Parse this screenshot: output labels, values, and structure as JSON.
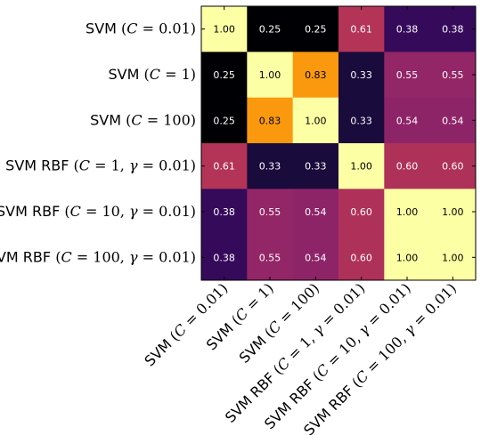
{
  "chart_data": {
    "type": "heatmap",
    "title": "",
    "xlabel": "",
    "ylabel": "",
    "colormap": "inferno",
    "value_range": [
      0.25,
      1.0
    ],
    "colorbar": false,
    "grid": false,
    "labels": [
      [
        {
          "t": "SVM ",
          "s": "n"
        },
        {
          "t": "(",
          "s": "u"
        },
        {
          "t": "C",
          "s": "i"
        },
        {
          "t": " = 0.01)",
          "s": "u"
        }
      ],
      [
        {
          "t": "SVM ",
          "s": "n"
        },
        {
          "t": "(",
          "s": "u"
        },
        {
          "t": "C",
          "s": "i"
        },
        {
          "t": " = 1)",
          "s": "u"
        }
      ],
      [
        {
          "t": "SVM ",
          "s": "n"
        },
        {
          "t": "(",
          "s": "u"
        },
        {
          "t": "C",
          "s": "i"
        },
        {
          "t": " = 100)",
          "s": "u"
        }
      ],
      [
        {
          "t": "SVM RBF ",
          "s": "n"
        },
        {
          "t": "(",
          "s": "u"
        },
        {
          "t": "C",
          "s": "i"
        },
        {
          "t": " = 1, ",
          "s": "u"
        },
        {
          "t": "γ",
          "s": "i"
        },
        {
          "t": " = 0.01)",
          "s": "u"
        }
      ],
      [
        {
          "t": "SVM RBF ",
          "s": "n"
        },
        {
          "t": "(",
          "s": "u"
        },
        {
          "t": "C",
          "s": "i"
        },
        {
          "t": " = 10, ",
          "s": "u"
        },
        {
          "t": "γ",
          "s": "i"
        },
        {
          "t": " = 0.01)",
          "s": "u"
        }
      ],
      [
        {
          "t": "SVM RBF ",
          "s": "n"
        },
        {
          "t": "(",
          "s": "u"
        },
        {
          "t": "C",
          "s": "i"
        },
        {
          "t": " = 100, ",
          "s": "u"
        },
        {
          "t": "γ",
          "s": "i"
        },
        {
          "t": " = 0.01)",
          "s": "u"
        }
      ]
    ],
    "values": [
      [
        1.0,
        0.25,
        0.25,
        0.61,
        0.38,
        0.38
      ],
      [
        0.25,
        1.0,
        0.83,
        0.33,
        0.55,
        0.55
      ],
      [
        0.25,
        0.83,
        1.0,
        0.33,
        0.54,
        0.54
      ],
      [
        0.61,
        0.33,
        0.33,
        1.0,
        0.6,
        0.6
      ],
      [
        0.38,
        0.55,
        0.54,
        0.6,
        1.0,
        1.0
      ],
      [
        0.38,
        0.55,
        0.54,
        0.6,
        1.0,
        1.0
      ]
    ],
    "cell_text": [
      [
        "1.00",
        "0.25",
        "0.25",
        "0.61",
        "0.38",
        "0.38"
      ],
      [
        "0.25",
        "1.00",
        "0.83",
        "0.33",
        "0.55",
        "0.55"
      ],
      [
        "0.25",
        "0.83",
        "1.00",
        "0.33",
        "0.54",
        "0.54"
      ],
      [
        "0.61",
        "0.33",
        "0.33",
        "1.00",
        "0.60",
        "0.60"
      ],
      [
        "0.38",
        "0.55",
        "0.54",
        "0.60",
        "1.00",
        "1.00"
      ],
      [
        "0.38",
        "0.55",
        "0.54",
        "0.60",
        "1.00",
        "1.00"
      ]
    ]
  }
}
